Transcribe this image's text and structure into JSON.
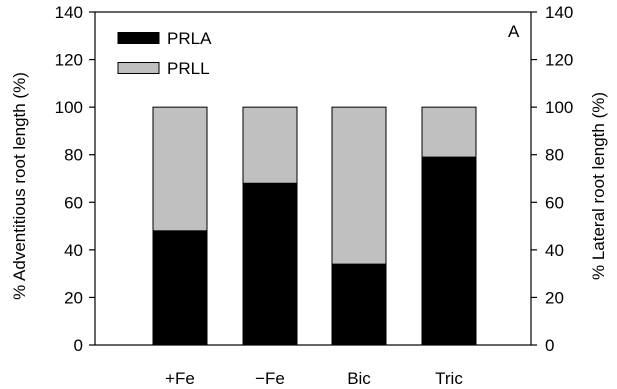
{
  "chart_data": {
    "type": "bar",
    "stacked": true,
    "panel_label": "A",
    "categories": [
      "+Fe",
      "−Fe",
      "Bic",
      "Tric"
    ],
    "series": [
      {
        "name": "PRLA",
        "values": [
          48,
          68,
          34,
          79
        ],
        "color": "#000000"
      },
      {
        "name": "PRLL",
        "values": [
          52,
          32,
          66,
          21
        ],
        "color": "#c0c0c0"
      }
    ],
    "ylabel": "% Adventitious root length (%)",
    "y2label": "% Lateral root length (%)",
    "ylim": [
      0,
      140
    ],
    "yticks": [
      0,
      20,
      40,
      60,
      80,
      100,
      120,
      140
    ],
    "y2ticks": [
      0,
      20,
      40,
      60,
      80,
      100,
      120,
      140
    ],
    "grid": false,
    "legend_position": "top-left"
  }
}
